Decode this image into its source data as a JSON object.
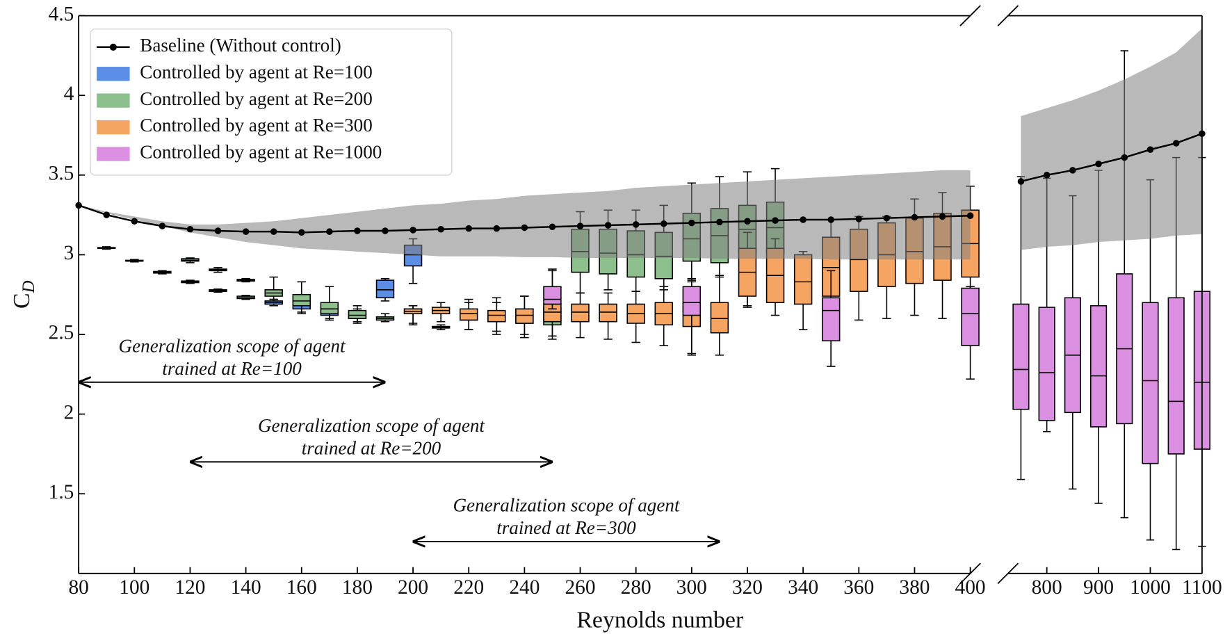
{
  "chart_data": {
    "type": "box",
    "xlabel": "Reynolds number",
    "ylabel": {
      "text": "C",
      "subscript": "D"
    },
    "ylim": [
      1.0,
      4.5
    ],
    "yticks": [
      1.5,
      2,
      2.5,
      3,
      3.5,
      4,
      4.5
    ],
    "panels": [
      {
        "xlim": [
          80,
          400
        ],
        "xticks": [
          80,
          100,
          120,
          140,
          160,
          180,
          200,
          220,
          240,
          260,
          280,
          300,
          320,
          340,
          360,
          380,
          400
        ]
      },
      {
        "xlim": [
          725,
          1100
        ],
        "xticks": [
          800,
          900,
          1000,
          1100
        ]
      }
    ],
    "legend": "upper left",
    "regions": [
      {
        "color": "#c3d1ec",
        "x": [
          80,
          190
        ]
      },
      {
        "color": "#9cc49a",
        "x": [
          120,
          250
        ]
      },
      {
        "color": "#f6a978",
        "x": [
          200,
          310
        ]
      }
    ],
    "baseline": {
      "name": "Baseline (Without control)",
      "color": "#000000",
      "band_color": "#7f7f7f",
      "x": [
        80,
        90,
        100,
        110,
        120,
        130,
        140,
        150,
        160,
        170,
        180,
        190,
        200,
        210,
        220,
        230,
        240,
        250,
        260,
        270,
        280,
        290,
        300,
        310,
        320,
        330,
        340,
        350,
        360,
        370,
        380,
        390,
        400,
        750,
        800,
        850,
        900,
        950,
        1000,
        1050,
        1100
      ],
      "values": [
        3.31,
        3.25,
        3.21,
        3.18,
        3.16,
        3.15,
        3.145,
        3.145,
        3.14,
        3.145,
        3.15,
        3.15,
        3.155,
        3.16,
        3.165,
        3.165,
        3.17,
        3.175,
        3.18,
        3.185,
        3.19,
        3.195,
        3.2,
        3.205,
        3.21,
        3.215,
        3.22,
        3.22,
        3.225,
        3.23,
        3.235,
        3.24,
        3.245,
        3.46,
        3.5,
        3.53,
        3.57,
        3.61,
        3.66,
        3.7,
        3.76
      ],
      "band_lower": [
        3.31,
        3.26,
        3.22,
        3.18,
        3.14,
        3.11,
        3.08,
        3.06,
        3.04,
        3.03,
        3.02,
        3.01,
        3.0,
        2.99,
        2.99,
        2.99,
        2.985,
        2.985,
        2.98,
        2.98,
        2.98,
        2.98,
        2.98,
        2.975,
        2.975,
        2.975,
        2.975,
        2.97,
        2.97,
        2.97,
        2.97,
        2.97,
        2.97,
        3.03,
        3.05,
        3.06,
        3.08,
        3.09,
        3.1,
        3.12,
        3.13
      ],
      "band_upper": [
        3.31,
        3.27,
        3.24,
        3.21,
        3.19,
        3.19,
        3.2,
        3.21,
        3.23,
        3.25,
        3.27,
        3.29,
        3.31,
        3.32,
        3.34,
        3.35,
        3.37,
        3.38,
        3.39,
        3.4,
        3.42,
        3.43,
        3.44,
        3.45,
        3.46,
        3.47,
        3.48,
        3.49,
        3.5,
        3.51,
        3.52,
        3.53,
        3.53,
        3.87,
        3.92,
        3.97,
        4.03,
        4.1,
        4.18,
        4.27,
        4.42
      ]
    },
    "series": [
      {
        "name": "Controlled by agent at Re=100",
        "color": "#5b8ee6",
        "x": [
          90,
          100,
          110,
          120,
          130,
          140,
          150,
          160,
          170,
          180,
          190,
          200
        ],
        "boxes": [
          [
            3.035,
            3.04,
            3.04,
            3.045,
            3.05
          ],
          [
            2.955,
            2.96,
            2.96,
            2.965,
            2.97
          ],
          [
            2.88,
            2.885,
            2.89,
            2.895,
            2.9
          ],
          [
            2.95,
            2.96,
            2.965,
            2.975,
            2.98
          ],
          [
            2.89,
            2.9,
            2.905,
            2.91,
            2.92
          ],
          [
            2.83,
            2.835,
            2.84,
            2.845,
            2.85
          ],
          [
            2.68,
            2.69,
            2.7,
            2.71,
            2.72
          ],
          [
            2.63,
            2.66,
            2.68,
            2.7,
            2.72
          ],
          [
            2.59,
            2.62,
            2.64,
            2.66,
            2.68
          ],
          [
            2.58,
            2.6,
            2.62,
            2.64,
            2.66
          ],
          [
            2.71,
            2.73,
            2.78,
            2.84,
            2.85
          ],
          [
            2.82,
            2.93,
            3.0,
            3.06,
            3.1
          ]
        ]
      },
      {
        "name": "Controlled by agent at Re=200",
        "color": "#8cbf8c",
        "x": [
          120,
          130,
          140,
          150,
          160,
          170,
          180,
          190,
          200,
          210,
          220,
          230,
          240,
          250,
          260,
          270,
          280,
          290,
          300,
          310,
          320,
          330
        ],
        "boxes": [
          [
            2.82,
            2.825,
            2.83,
            2.835,
            2.84
          ],
          [
            2.765,
            2.77,
            2.775,
            2.78,
            2.785
          ],
          [
            2.72,
            2.725,
            2.73,
            2.74,
            2.745
          ],
          [
            2.72,
            2.74,
            2.76,
            2.78,
            2.86
          ],
          [
            2.64,
            2.68,
            2.71,
            2.75,
            2.83
          ],
          [
            2.6,
            2.63,
            2.66,
            2.7,
            2.8
          ],
          [
            2.57,
            2.6,
            2.62,
            2.65,
            2.68
          ],
          [
            2.58,
            2.59,
            2.6,
            2.61,
            2.63
          ],
          [
            2.57,
            2.63,
            2.645,
            2.66,
            2.68
          ],
          [
            2.53,
            2.54,
            2.545,
            2.55,
            2.56
          ],
          [
            2.53,
            2.59,
            2.62,
            2.65,
            2.7
          ],
          [
            2.52,
            2.58,
            2.61,
            2.64,
            2.7
          ],
          [
            2.5,
            2.57,
            2.61,
            2.66,
            2.74
          ],
          [
            2.49,
            2.56,
            2.61,
            2.67,
            2.78
          ],
          [
            2.76,
            2.89,
            3.02,
            3.16,
            3.27
          ],
          [
            2.78,
            2.88,
            3.01,
            3.16,
            3.28
          ],
          [
            2.77,
            2.86,
            3.0,
            3.15,
            3.28
          ],
          [
            2.78,
            2.85,
            2.99,
            3.14,
            3.31
          ],
          [
            2.84,
            2.96,
            3.1,
            3.26,
            3.45
          ],
          [
            2.86,
            2.95,
            3.12,
            3.29,
            3.49
          ],
          [
            2.67,
            3.01,
            3.16,
            3.31,
            3.52
          ],
          [
            2.7,
            3.01,
            3.17,
            3.33,
            3.54
          ]
        ]
      },
      {
        "name": "Controlled by agent at Re=300",
        "color": "#f5a461",
        "x": [
          200,
          210,
          220,
          230,
          240,
          250,
          260,
          270,
          280,
          290,
          300,
          310,
          320,
          330,
          340,
          350,
          360,
          370,
          380,
          390,
          400
        ],
        "boxes": [
          [
            2.56,
            2.63,
            2.645,
            2.66,
            2.68
          ],
          [
            2.58,
            2.63,
            2.65,
            2.67,
            2.7
          ],
          [
            2.53,
            2.59,
            2.63,
            2.66,
            2.72
          ],
          [
            2.5,
            2.58,
            2.62,
            2.65,
            2.73
          ],
          [
            2.48,
            2.57,
            2.62,
            2.66,
            2.74
          ],
          [
            2.47,
            2.58,
            2.64,
            2.69,
            2.91
          ],
          [
            2.48,
            2.58,
            2.64,
            2.69,
            2.76
          ],
          [
            2.47,
            2.58,
            2.64,
            2.69,
            2.76
          ],
          [
            2.45,
            2.57,
            2.63,
            2.69,
            2.77
          ],
          [
            2.43,
            2.56,
            2.63,
            2.7,
            2.8
          ],
          [
            2.37,
            2.55,
            2.62,
            2.7,
            2.83
          ],
          [
            2.37,
            2.51,
            2.6,
            2.7,
            2.87
          ],
          [
            2.68,
            2.74,
            2.89,
            3.04,
            3.14
          ],
          [
            2.62,
            2.7,
            2.87,
            3.04,
            3.1
          ],
          [
            2.53,
            2.69,
            2.83,
            3.0,
            3.02
          ],
          [
            2.3,
            2.74,
            2.92,
            3.11,
            3.22
          ],
          [
            2.59,
            2.77,
            2.97,
            3.16,
            3.24
          ],
          [
            2.6,
            2.8,
            3.0,
            3.2,
            3.24
          ],
          [
            2.62,
            2.82,
            3.02,
            3.23,
            3.35
          ],
          [
            2.6,
            2.84,
            3.05,
            3.26,
            3.39
          ],
          [
            2.65,
            2.86,
            3.07,
            3.28,
            3.43
          ]
        ]
      },
      {
        "name": "Controlled by agent at Re=1000",
        "color": "#da8fe0",
        "x": [
          250,
          300,
          350,
          400,
          750,
          800,
          850,
          900,
          950,
          1000,
          1050,
          1100
        ],
        "boxes": [
          [
            2.66,
            2.69,
            2.72,
            2.8,
            2.9
          ],
          [
            2.38,
            2.62,
            2.7,
            2.8,
            2.85
          ],
          [
            2.3,
            2.46,
            2.65,
            2.73,
            2.9
          ],
          [
            2.22,
            2.43,
            2.63,
            2.79,
            2.8
          ],
          [
            1.59,
            2.03,
            2.28,
            2.69,
            3.49
          ],
          [
            1.89,
            1.96,
            2.26,
            2.67,
            3.48
          ],
          [
            1.53,
            2.01,
            2.37,
            2.73,
            3.37
          ],
          [
            1.44,
            1.92,
            2.24,
            2.68,
            3.53
          ],
          [
            1.35,
            1.94,
            2.41,
            2.88,
            4.28
          ],
          [
            1.21,
            1.69,
            2.21,
            2.7,
            3.47
          ],
          [
            1.15,
            1.75,
            2.08,
            2.73,
            3.61
          ],
          [
            1.17,
            1.78,
            2.2,
            2.77,
            3.61
          ]
        ]
      }
    ],
    "annotations": [
      {
        "text": [
          "Generalization scope of agent",
          "trained at Re=100"
        ],
        "x": [
          80,
          190
        ],
        "y": 2.2
      },
      {
        "text": [
          "Generalization scope of agent",
          "trained at Re=200"
        ],
        "x": [
          120,
          250
        ],
        "y": 1.7
      },
      {
        "text": [
          "Generalization scope of agent",
          "trained at Re=300"
        ],
        "x": [
          200,
          310
        ],
        "y": 1.2
      }
    ]
  }
}
